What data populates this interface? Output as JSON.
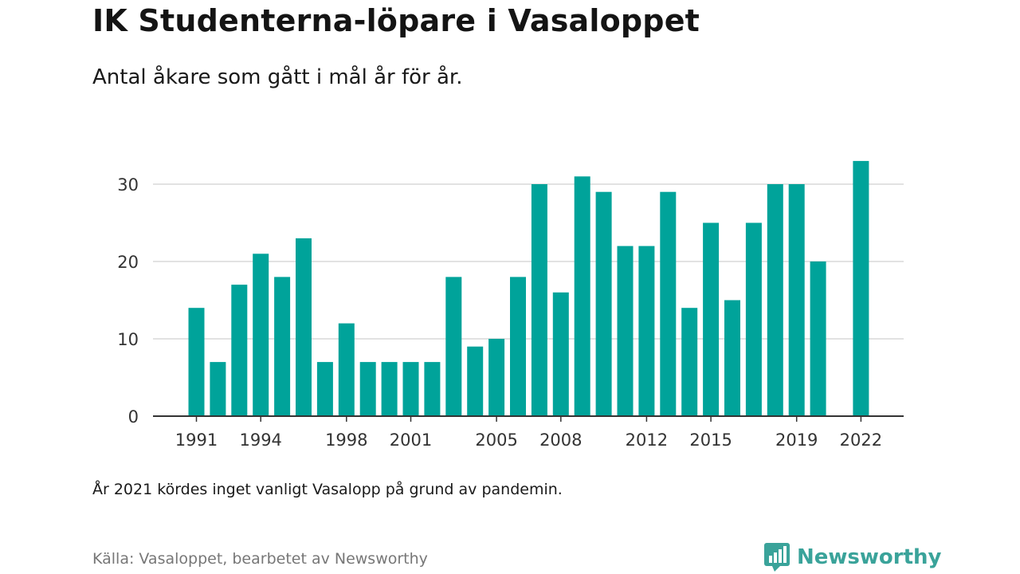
{
  "title": "IK Studenterna-löpare i Vasaloppet",
  "subtitle": "Antal åkare som gått i mål år för år.",
  "note": "År 2021 kördes inget vanligt Vasalopp på grund av pandemin.",
  "source": "Källa: Vasaloppet, bearbetet av Newsworthy",
  "brand": {
    "name": "Newsworthy",
    "logo_icon": "chart-bubble-icon",
    "color": "#3aa39a"
  },
  "chart_data": {
    "type": "bar",
    "title": "",
    "xlabel": "",
    "ylabel": "",
    "color": "#00a39a",
    "categories": [
      1991,
      1992,
      1993,
      1994,
      1995,
      1996,
      1997,
      1998,
      1999,
      2000,
      2001,
      2002,
      2003,
      2004,
      2005,
      2006,
      2007,
      2008,
      2009,
      2010,
      2011,
      2012,
      2013,
      2014,
      2015,
      2016,
      2017,
      2018,
      2019,
      2020,
      2021,
      2022
    ],
    "values": [
      14,
      7,
      17,
      21,
      18,
      23,
      7,
      12,
      7,
      7,
      7,
      7,
      18,
      9,
      10,
      18,
      30,
      16,
      31,
      29,
      22,
      22,
      29,
      14,
      25,
      15,
      25,
      30,
      30,
      20,
      null,
      33
    ],
    "ylim": [
      0,
      36
    ],
    "yticks": [
      0,
      10,
      20,
      30
    ],
    "xticks": [
      1991,
      1994,
      1998,
      2001,
      2005,
      2008,
      2012,
      2015,
      2019,
      2022
    ],
    "grid": true
  }
}
